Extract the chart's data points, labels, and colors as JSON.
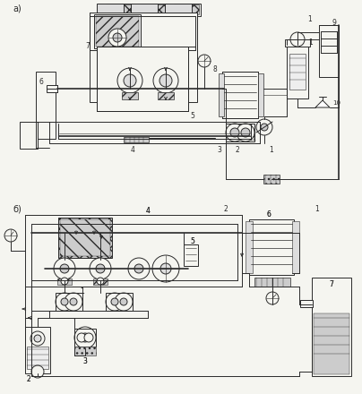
{
  "background_color": "#f5f5f0",
  "line_color": "#2a2a2a",
  "fig_width": 4.04,
  "fig_height": 4.4,
  "dpi": 100,
  "lw": 0.7,
  "lw2": 1.2
}
